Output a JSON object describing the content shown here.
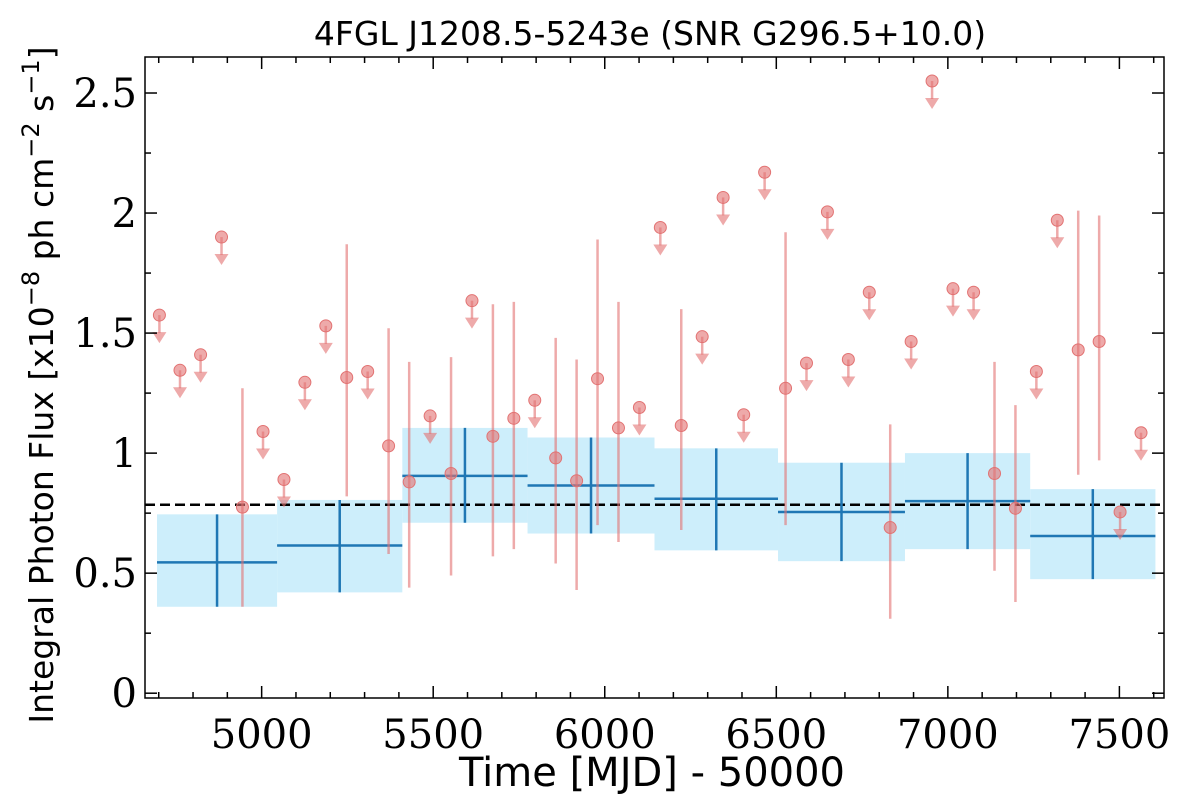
{
  "chart_data": {
    "type": "scatter",
    "title": "4FGL J1208.5-5243e (SNR G296.5+10.0)",
    "xlabel": "Time [MJD] - 50000",
    "ylabel": {
      "main": "Integral Photon Flux [x10",
      "exp1": "−8",
      "mid": " ph cm",
      "exp2": "−2",
      "mid2": " s",
      "exp3": "−1",
      "end": "]"
    },
    "xlim": [
      4660,
      7630
    ],
    "ylim": [
      -0.02,
      2.65
    ],
    "xticks": [
      5000,
      5500,
      6000,
      6500,
      7000,
      7500
    ],
    "xtick_labels": [
      "5000",
      "5500",
      "6000",
      "6500",
      "7000",
      "7500"
    ],
    "yticks": [
      0,
      0.5,
      1,
      1.5,
      2,
      2.5
    ],
    "ytick_labels": [
      "0",
      "0.5",
      "1",
      "1.5",
      "2",
      "2.5"
    ],
    "grid": false,
    "mean_flux": 0.785,
    "colors": {
      "coarse": "#1f77b4",
      "coarse_band": "#cdeefb",
      "fine": "#e27272",
      "mean_line": "#000000"
    },
    "coarse_bins": [
      {
        "t_start": 4695,
        "t_end": 5045,
        "flux": 0.545,
        "err_lo": 0.36,
        "err_hi": 0.745,
        "band_lo": 0.36,
        "band_hi": 0.745
      },
      {
        "t_start": 5045,
        "t_end": 5410,
        "flux": 0.615,
        "err_lo": 0.42,
        "err_hi": 0.805,
        "band_lo": 0.42,
        "band_hi": 0.805
      },
      {
        "t_start": 5410,
        "t_end": 5775,
        "flux": 0.905,
        "err_lo": 0.71,
        "err_hi": 1.105,
        "band_lo": 0.71,
        "band_hi": 1.105
      },
      {
        "t_start": 5775,
        "t_end": 6145,
        "flux": 0.865,
        "err_lo": 0.665,
        "err_hi": 1.065,
        "band_lo": 0.665,
        "band_hi": 1.065
      },
      {
        "t_start": 6145,
        "t_end": 6505,
        "flux": 0.81,
        "err_lo": 0.595,
        "err_hi": 1.02,
        "band_lo": 0.595,
        "band_hi": 1.02
      },
      {
        "t_start": 6505,
        "t_end": 6875,
        "flux": 0.755,
        "err_lo": 0.55,
        "err_hi": 0.96,
        "band_lo": 0.55,
        "band_hi": 0.96
      },
      {
        "t_start": 6875,
        "t_end": 7240,
        "flux": 0.8,
        "err_lo": 0.6,
        "err_hi": 1.0,
        "band_lo": 0.6,
        "band_hi": 1.0
      },
      {
        "t_start": 7240,
        "t_end": 7605,
        "flux": 0.655,
        "err_lo": 0.475,
        "err_hi": 0.85,
        "band_lo": 0.475,
        "band_hi": 0.85
      }
    ],
    "fine_points": [
      {
        "t": 4702,
        "flux": 1.575,
        "upper_limit": true
      },
      {
        "t": 4762,
        "flux": 1.345,
        "upper_limit": true
      },
      {
        "t": 4822,
        "flux": 1.41,
        "upper_limit": true
      },
      {
        "t": 4883,
        "flux": 1.9,
        "upper_limit": true
      },
      {
        "t": 4944,
        "flux": 0.775,
        "err_lo": 0.36,
        "err_hi": 1.27
      },
      {
        "t": 5004,
        "flux": 1.09,
        "upper_limit": true
      },
      {
        "t": 5065,
        "flux": 0.89,
        "upper_limit": true
      },
      {
        "t": 5126,
        "flux": 1.295,
        "upper_limit": true
      },
      {
        "t": 5187,
        "flux": 1.53,
        "upper_limit": true
      },
      {
        "t": 5248,
        "flux": 1.315,
        "err_lo": 0.82,
        "err_hi": 1.87
      },
      {
        "t": 5309,
        "flux": 1.34,
        "upper_limit": true
      },
      {
        "t": 5370,
        "flux": 1.03,
        "err_lo": 0.58,
        "err_hi": 1.52
      },
      {
        "t": 5430,
        "flux": 0.88,
        "err_lo": 0.44,
        "err_hi": 1.38
      },
      {
        "t": 5491,
        "flux": 1.155,
        "upper_limit": true
      },
      {
        "t": 5552,
        "flux": 0.915,
        "err_lo": 0.49,
        "err_hi": 1.4
      },
      {
        "t": 5613,
        "flux": 1.635,
        "upper_limit": true
      },
      {
        "t": 5674,
        "flux": 1.07,
        "err_lo": 0.57,
        "err_hi": 1.62
      },
      {
        "t": 5735,
        "flux": 1.145,
        "err_lo": 0.6,
        "err_hi": 1.63
      },
      {
        "t": 5796,
        "flux": 1.22,
        "upper_limit": true
      },
      {
        "t": 5857,
        "flux": 0.98,
        "err_lo": 0.54,
        "err_hi": 1.48
      },
      {
        "t": 5918,
        "flux": 0.885,
        "err_lo": 0.43,
        "err_hi": 1.39
      },
      {
        "t": 5979,
        "flux": 1.31,
        "err_lo": 0.7,
        "err_hi": 1.89
      },
      {
        "t": 6040,
        "flux": 1.105,
        "err_lo": 0.63,
        "err_hi": 1.63
      },
      {
        "t": 6101,
        "flux": 1.19,
        "upper_limit": true
      },
      {
        "t": 6162,
        "flux": 1.94,
        "upper_limit": true
      },
      {
        "t": 6223,
        "flux": 1.115,
        "err_lo": 0.68,
        "err_hi": 1.6
      },
      {
        "t": 6284,
        "flux": 1.485,
        "upper_limit": true
      },
      {
        "t": 6345,
        "flux": 2.065,
        "upper_limit": true
      },
      {
        "t": 6405,
        "flux": 1.16,
        "upper_limit": true
      },
      {
        "t": 6466,
        "flux": 2.17,
        "upper_limit": true
      },
      {
        "t": 6527,
        "flux": 1.27,
        "err_lo": 0.7,
        "err_hi": 1.92
      },
      {
        "t": 6588,
        "flux": 1.375,
        "upper_limit": true
      },
      {
        "t": 6649,
        "flux": 2.005,
        "upper_limit": true
      },
      {
        "t": 6710,
        "flux": 1.39,
        "upper_limit": true
      },
      {
        "t": 6771,
        "flux": 1.67,
        "upper_limit": true
      },
      {
        "t": 6832,
        "flux": 0.69,
        "err_lo": 0.31,
        "err_hi": 1.12
      },
      {
        "t": 6893,
        "flux": 1.465,
        "upper_limit": true
      },
      {
        "t": 6954,
        "flux": 2.55,
        "upper_limit": true
      },
      {
        "t": 7015,
        "flux": 1.685,
        "upper_limit": true
      },
      {
        "t": 7075,
        "flux": 1.67,
        "upper_limit": true
      },
      {
        "t": 7136,
        "flux": 0.915,
        "err_lo": 0.51,
        "err_hi": 1.38
      },
      {
        "t": 7197,
        "flux": 0.77,
        "err_lo": 0.38,
        "err_hi": 1.2
      },
      {
        "t": 7258,
        "flux": 1.34,
        "upper_limit": true
      },
      {
        "t": 7319,
        "flux": 1.97,
        "upper_limit": true
      },
      {
        "t": 7380,
        "flux": 1.43,
        "err_lo": 0.91,
        "err_hi": 2.01
      },
      {
        "t": 7441,
        "flux": 1.465,
        "err_lo": 0.97,
        "err_hi": 1.99
      },
      {
        "t": 7502,
        "flux": 0.755,
        "upper_limit": true
      },
      {
        "t": 7563,
        "flux": 1.085,
        "upper_limit": true
      }
    ]
  }
}
